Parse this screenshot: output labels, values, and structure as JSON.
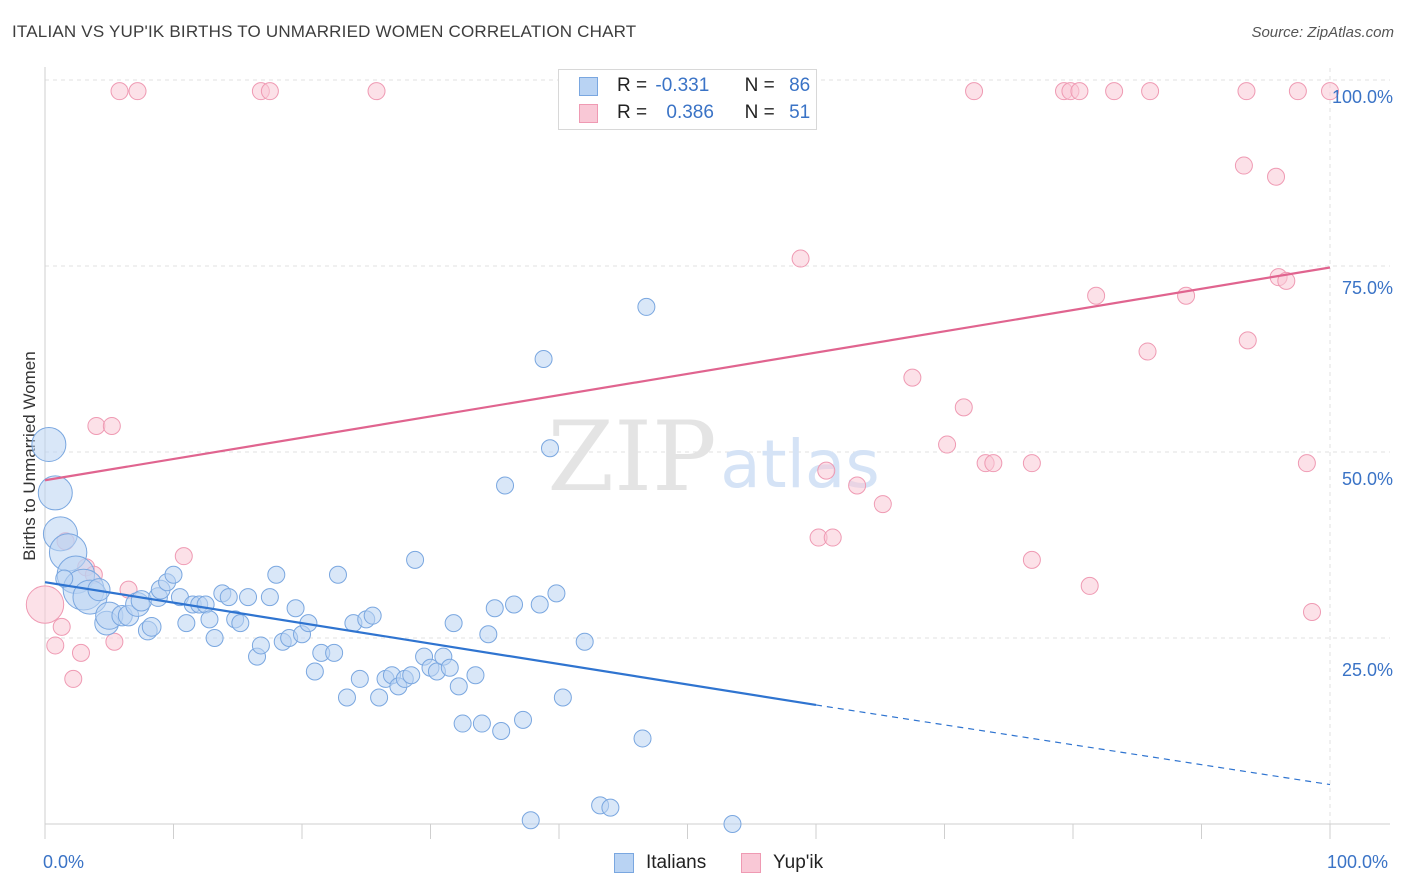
{
  "header": {
    "title": "ITALIAN VS YUP'IK BIRTHS TO UNMARRIED WOMEN CORRELATION CHART",
    "source": "Source: ZipAtlas.com"
  },
  "watermark": {
    "zip": "ZIP",
    "atlas": "atlas"
  },
  "legend_top": {
    "italians": {
      "r_label": "R =",
      "r_value": "-0.331",
      "n_label": "N =",
      "n_value": "86"
    },
    "yupik": {
      "r_label": "R =",
      "r_value": "0.386",
      "n_label": "N =",
      "n_value": "51"
    }
  },
  "legend_bottom": {
    "italians": "Italians",
    "yupik": "Yup'ik"
  },
  "axes": {
    "x_min_label": "0.0%",
    "x_max_label": "100.0%",
    "y_ticks": [
      "100.0%",
      "75.0%",
      "50.0%",
      "25.0%"
    ]
  },
  "colors": {
    "italians_fill": "#b9d3f3",
    "italians_stroke": "#7aa7e0",
    "italians_line": "#2f74d0",
    "yupik_fill": "#f9c8d6",
    "yupik_stroke": "#ef9ab3",
    "yupik_line": "#e0648f",
    "grid": "#e2e2e2",
    "axis_text": "#3a73c6"
  },
  "chart_data": {
    "type": "scatter",
    "title": "ITALIAN VS YUP'IK BIRTHS TO UNMARRIED WOMEN CORRELATION CHART",
    "xlabel": "",
    "ylabel": "Births to Unmarried Women",
    "xlim": [
      0,
      100
    ],
    "ylim": [
      0,
      100
    ],
    "grid": true,
    "legend_position": "top-center",
    "series": [
      {
        "name": "Italians",
        "r": -0.331,
        "n": 86,
        "trend": {
          "x0": 0,
          "y0": 32.5,
          "x1": 60,
          "y1": 16,
          "dashed_to_x": 100,
          "dashed_to_y": 5.3
        },
        "points": [
          [
            0.3,
            51,
            2.0
          ],
          [
            0.8,
            44.5,
            2.0
          ],
          [
            1.2,
            39,
            2.0
          ],
          [
            1.8,
            36.5,
            2.2
          ],
          [
            2.4,
            33.5,
            2.2
          ],
          [
            3.0,
            31.5,
            2.4
          ],
          [
            3.5,
            30.5,
            2.0
          ],
          [
            4.2,
            31.5,
            1.3
          ],
          [
            4.8,
            27,
            1.4
          ],
          [
            5.0,
            28,
            1.6
          ],
          [
            6.0,
            28,
            1.2
          ],
          [
            6.5,
            28,
            1.2
          ],
          [
            7.2,
            29.5,
            1.4
          ],
          [
            7.5,
            30,
            1.2
          ],
          [
            8.0,
            26,
            1.1
          ],
          [
            8.3,
            26.5,
            1.1
          ],
          [
            8.8,
            30.5,
            1.1
          ],
          [
            9.0,
            31.5,
            1.1
          ],
          [
            9.5,
            32.5,
            1.0
          ],
          [
            10.0,
            33.5,
            1.0
          ],
          [
            10.5,
            30.5,
            1.0
          ],
          [
            11.0,
            27,
            1.0
          ],
          [
            11.5,
            29.5,
            1.0
          ],
          [
            12.0,
            29.5,
            1.0
          ],
          [
            12.5,
            29.5,
            1.0
          ],
          [
            12.8,
            27.5,
            1.0
          ],
          [
            13.2,
            25,
            1.0
          ],
          [
            13.8,
            31,
            1.0
          ],
          [
            14.3,
            30.5,
            1.0
          ],
          [
            14.8,
            27.5,
            1.0
          ],
          [
            15.2,
            27,
            1.0
          ],
          [
            15.8,
            30.5,
            1.0
          ],
          [
            16.5,
            22.5,
            1.0
          ],
          [
            16.8,
            24,
            1.0
          ],
          [
            17.5,
            30.5,
            1.0
          ],
          [
            18.0,
            33.5,
            1.0
          ],
          [
            18.5,
            24.5,
            1.0
          ],
          [
            19.0,
            25,
            1.0
          ],
          [
            19.5,
            29,
            1.0
          ],
          [
            20.0,
            25.5,
            1.0
          ],
          [
            20.5,
            27,
            1.0
          ],
          [
            21.0,
            20.5,
            1.0
          ],
          [
            21.5,
            23,
            1.0
          ],
          [
            22.5,
            23,
            1.0
          ],
          [
            22.8,
            33.5,
            1.0
          ],
          [
            23.5,
            17,
            1.0
          ],
          [
            24.0,
            27,
            1.0
          ],
          [
            24.5,
            19.5,
            1.0
          ],
          [
            25.0,
            27.5,
            1.0
          ],
          [
            25.5,
            28,
            1.0
          ],
          [
            26.0,
            17,
            1.0
          ],
          [
            26.5,
            19.5,
            1.0
          ],
          [
            27.0,
            20,
            1.0
          ],
          [
            27.5,
            18.5,
            1.0
          ],
          [
            28.0,
            19.5,
            1.0
          ],
          [
            28.5,
            20,
            1.0
          ],
          [
            28.8,
            35.5,
            1.0
          ],
          [
            29.5,
            22.5,
            1.0
          ],
          [
            30.0,
            21,
            1.0
          ],
          [
            30.5,
            20.5,
            1.0
          ],
          [
            31.0,
            22.5,
            1.0
          ],
          [
            31.5,
            21,
            1.0
          ],
          [
            31.8,
            27,
            1.0
          ],
          [
            32.2,
            18.5,
            1.0
          ],
          [
            32.5,
            13.5,
            1.0
          ],
          [
            33.5,
            20,
            1.0
          ],
          [
            34.0,
            13.5,
            1.0
          ],
          [
            34.5,
            25.5,
            1.0
          ],
          [
            35.0,
            29,
            1.0
          ],
          [
            35.5,
            12.5,
            1.0
          ],
          [
            35.8,
            45.5,
            1.0
          ],
          [
            36.5,
            29.5,
            1.0
          ],
          [
            37.2,
            14,
            1.0
          ],
          [
            37.8,
            0.5,
            1.0
          ],
          [
            38.5,
            29.5,
            1.0
          ],
          [
            38.8,
            62.5,
            1.0
          ],
          [
            39.3,
            50.5,
            1.0
          ],
          [
            39.8,
            31,
            1.0
          ],
          [
            40.3,
            17,
            1.0
          ],
          [
            42.0,
            24.5,
            1.0
          ],
          [
            43.2,
            2.5,
            1.0
          ],
          [
            44.0,
            2.2,
            1.0
          ],
          [
            46.5,
            11.5,
            1.0
          ],
          [
            46.8,
            69.5,
            1.0
          ],
          [
            53.5,
            0.0,
            1.0
          ],
          [
            1.5,
            33.0,
            1.0
          ]
        ]
      },
      {
        "name": "Yup'ik",
        "r": 0.386,
        "n": 51,
        "trend": {
          "x0": 0,
          "y0": 46.2,
          "x1": 100,
          "y1": 74.8
        },
        "points": [
          [
            0.0,
            29.5,
            2.2
          ],
          [
            0.8,
            24,
            1.0
          ],
          [
            1.3,
            26.5,
            1.0
          ],
          [
            1.6,
            38,
            1.0
          ],
          [
            2.2,
            19.5,
            1.0
          ],
          [
            2.8,
            23,
            1.0
          ],
          [
            3.2,
            34.5,
            1.0
          ],
          [
            3.8,
            33.5,
            1.0
          ],
          [
            4.0,
            53.5,
            1.0
          ],
          [
            5.2,
            53.5,
            1.0
          ],
          [
            5.4,
            24.5,
            1.0
          ],
          [
            5.8,
            98.5,
            1.0
          ],
          [
            6.5,
            31.5,
            1.0
          ],
          [
            7.2,
            98.5,
            1.0
          ],
          [
            10.8,
            36,
            1.0
          ],
          [
            16.8,
            98.5,
            1.0
          ],
          [
            17.5,
            98.5,
            1.0
          ],
          [
            25.8,
            98.5,
            1.0
          ],
          [
            58.8,
            76.0,
            1.0
          ],
          [
            60.2,
            38.5,
            1.0
          ],
          [
            60.8,
            47.5,
            1.0
          ],
          [
            61.3,
            38.5,
            1.0
          ],
          [
            63.2,
            45.5,
            1.0
          ],
          [
            65.2,
            43.0,
            1.0
          ],
          [
            67.5,
            60.0,
            1.0
          ],
          [
            70.2,
            51.0,
            1.0
          ],
          [
            71.5,
            56.0,
            1.0
          ],
          [
            72.3,
            98.5,
            1.0
          ],
          [
            73.2,
            48.5,
            1.0
          ],
          [
            73.8,
            48.5,
            1.0
          ],
          [
            76.8,
            35.5,
            1.0
          ],
          [
            76.8,
            48.5,
            1.0
          ],
          [
            79.3,
            98.5,
            1.0
          ],
          [
            79.8,
            98.5,
            1.0
          ],
          [
            80.5,
            98.5,
            1.0
          ],
          [
            81.3,
            32.0,
            1.0
          ],
          [
            81.8,
            71.0,
            1.0
          ],
          [
            83.2,
            98.5,
            1.0
          ],
          [
            85.8,
            63.5,
            1.0
          ],
          [
            86.0,
            98.5,
            1.0
          ],
          [
            88.8,
            71.0,
            1.0
          ],
          [
            93.3,
            88.5,
            1.0
          ],
          [
            93.5,
            98.5,
            1.0
          ],
          [
            93.6,
            65.0,
            1.0
          ],
          [
            95.8,
            87.0,
            1.0
          ],
          [
            96.0,
            73.5,
            1.0
          ],
          [
            96.6,
            73.0,
            1.0
          ],
          [
            97.5,
            98.5,
            1.0
          ],
          [
            98.2,
            48.5,
            1.0
          ],
          [
            98.6,
            28.5,
            1.0
          ],
          [
            100.0,
            98.5,
            1.0
          ]
        ]
      }
    ]
  }
}
